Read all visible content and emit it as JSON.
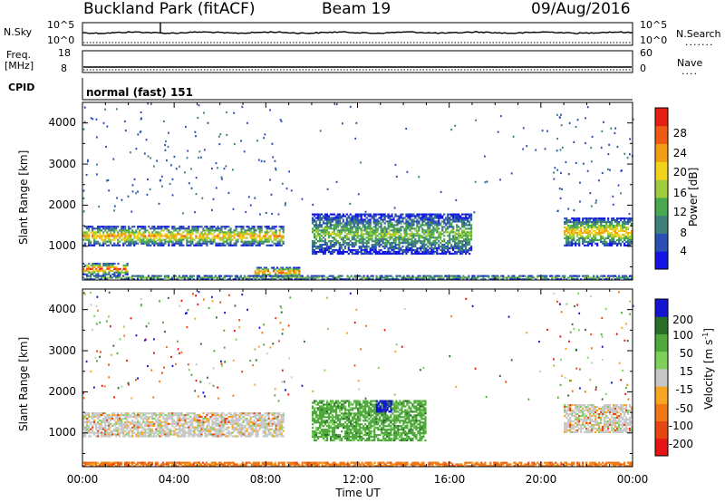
{
  "header": {
    "station": "Buckland Park (fitACF)",
    "beam": "Beam 19",
    "date": "09/Aug/2016"
  },
  "top_panels": {
    "nsky_label": "N.Sky",
    "nsky_ticks": [
      "10^5",
      "10^0"
    ],
    "nsearch_label": "N.Search",
    "nsearch_ticks": [
      "10^5",
      "10^0"
    ],
    "freq_label": "Freq.",
    "freq_unit": "[MHz]",
    "freq_ticks": [
      "18",
      "8"
    ],
    "nave_label": "Nave",
    "nave_ticks": [
      "60",
      "0"
    ],
    "cpid_label": "CPID",
    "cpid_text": "normal (fast) 151"
  },
  "axes": {
    "xlabel": "Time UT",
    "x_ticks": [
      "00:00",
      "04:00",
      "08:00",
      "12:00",
      "16:00",
      "20:00",
      "00:00"
    ],
    "ylabel": "Slant Range [km]",
    "y_ticks": [
      "1000",
      "2000",
      "3000",
      "4000"
    ]
  },
  "colors": {
    "frame": "#000000",
    "background": "#ffffff",
    "trace": "#000000",
    "dotted_trace": "#000000"
  },
  "chart_data": [
    {
      "type": "heatmap",
      "quantity": "Power",
      "colorbar_label": "Power [dB]",
      "colorbar_ticks": [
        "4",
        "8",
        "12",
        "16",
        "20",
        "24",
        "28"
      ],
      "colorbar_range": [
        0,
        30
      ],
      "colorbar_colors": [
        "#1414e6",
        "#2a4fb5",
        "#3f7f7c",
        "#48a850",
        "#9fcc3a",
        "#f2d31b",
        "#f29e14",
        "#ee5a14",
        "#e61e14"
      ],
      "x_range_hours": [
        0,
        24
      ],
      "y_range_km": [
        180,
        4500
      ],
      "features": [
        {
          "name": "main band",
          "t": [
            0,
            8.8
          ],
          "range_km": [
            1000,
            1500
          ],
          "peak_db": 22
        },
        {
          "name": "near range echo",
          "t": [
            0,
            2.0
          ],
          "range_km": [
            300,
            600
          ],
          "peak_db": 28
        },
        {
          "name": "morning patch",
          "t": [
            7.5,
            9.5
          ],
          "range_km": [
            250,
            500
          ],
          "peak_db": 26
        },
        {
          "name": "midday patches",
          "t": [
            10,
            17
          ],
          "range_km": [
            800,
            1800
          ],
          "peak_db": 14
        },
        {
          "name": "evening band",
          "t": [
            21,
            24
          ],
          "range_km": [
            1000,
            1700
          ],
          "peak_db": 22
        },
        {
          "name": "ground scatter floor",
          "t": [
            0,
            24
          ],
          "range_km": [
            180,
            300
          ],
          "peak_db": 12
        }
      ]
    },
    {
      "type": "heatmap",
      "quantity": "Velocity",
      "colorbar_label": "Velocity [m s^-1]",
      "colorbar_ticks": [
        "200",
        "100",
        "50",
        "15",
        "-15",
        "-50",
        "-100",
        "-200"
      ],
      "colorbar_colors": [
        "#1414d2",
        "#2a6e2a",
        "#4fa83c",
        "#7dd05a",
        "#c8c8c8",
        "#f5a623",
        "#f07814",
        "#e64614",
        "#e61414"
      ],
      "x_range_hours": [
        0,
        24
      ],
      "y_range_km": [
        180,
        4500
      ],
      "features": [
        {
          "name": "main band (low velocity)",
          "t": [
            0,
            8.8
          ],
          "range_km": [
            900,
            1500
          ],
          "velocity": 0
        },
        {
          "name": "midday green patches",
          "t": [
            10,
            15
          ],
          "range_km": [
            800,
            1800
          ],
          "velocity": 40
        },
        {
          "name": "blue patch",
          "t": [
            12.8,
            13.5
          ],
          "range_km": [
            1500,
            1800
          ],
          "velocity": 200
        },
        {
          "name": "evening band (low velocity)",
          "t": [
            21,
            24
          ],
          "range_km": [
            1000,
            1700
          ],
          "velocity": 0
        },
        {
          "name": "ground scatter floor",
          "t": [
            0,
            24
          ],
          "range_km": [
            180,
            300
          ],
          "velocity": -60
        }
      ]
    }
  ]
}
